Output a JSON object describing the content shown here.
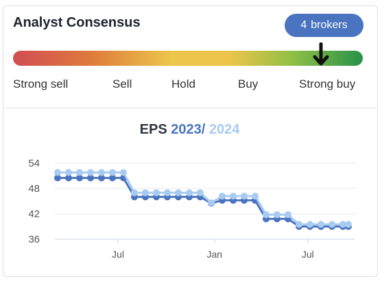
{
  "header": {
    "title": "Analyst Consensus",
    "brokers_count": "4",
    "brokers_label": "brokers"
  },
  "ratings": {
    "labels": [
      "Strong sell",
      "Sell",
      "Hold",
      "Buy",
      "Strong buy"
    ],
    "marker_position_fraction": 0.88,
    "gradient_colors": [
      "#d14d52",
      "#de7a3c",
      "#ecc54a",
      "#8fbf45",
      "#27914a"
    ]
  },
  "eps": {
    "prefix": "EPS",
    "year1": "2023",
    "separator": "/",
    "year2": "2024"
  },
  "chart_data": {
    "type": "line",
    "yticks": [
      54,
      48,
      42,
      36
    ],
    "ylim": [
      36,
      56.5
    ],
    "xlim": [
      0,
      27
    ],
    "xticks": [
      {
        "label": "Jul",
        "x": 5.5
      },
      {
        "label": "Jan",
        "x": 14.3
      },
      {
        "label": "Jul",
        "x": 22.8
      }
    ],
    "x": [
      0,
      1,
      2,
      3,
      4,
      5,
      6,
      7,
      8,
      9,
      10,
      11,
      12,
      13,
      14,
      15,
      16,
      17,
      18,
      19,
      20,
      21,
      22,
      23,
      24,
      25,
      26,
      26.5
    ],
    "series": [
      {
        "name": "2023",
        "color": "#4a74bf",
        "values": [
          50.5,
          50.5,
          50.5,
          50.5,
          50.5,
          50.5,
          50.5,
          46,
          46,
          46,
          46,
          46,
          46,
          46,
          44.5,
          45.2,
          45.2,
          45.2,
          45.2,
          40.8,
          40.8,
          40.8,
          39,
          39,
          39,
          39,
          39,
          39
        ]
      },
      {
        "name": "2024",
        "color": "#a8cbf1",
        "values": [
          51.8,
          51.8,
          51.8,
          51.8,
          51.8,
          51.8,
          51.8,
          47,
          47,
          47,
          47,
          47,
          47,
          47,
          44.6,
          46.2,
          46.2,
          46.2,
          46.2,
          41.8,
          41.8,
          41.8,
          39.5,
          39.5,
          39.5,
          39.5,
          39.5,
          39.5
        ]
      }
    ],
    "grid": true
  }
}
